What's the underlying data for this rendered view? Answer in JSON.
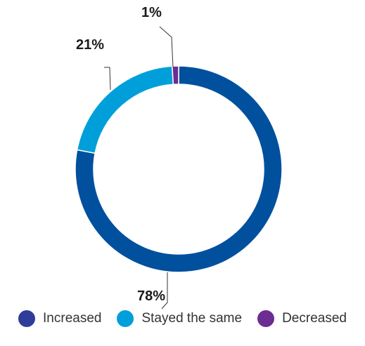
{
  "chart_data": {
    "type": "pie",
    "categories": [
      "Increased",
      "Stayed the same",
      "Decreased"
    ],
    "values": [
      78,
      21,
      1
    ],
    "value_labels": [
      "78%",
      "21%",
      "1%"
    ],
    "colors": [
      "#00509e",
      "#009fda",
      "#6d2c91"
    ],
    "legend_colors": [
      "#2e3d99",
      "#009fda",
      "#6d2c91"
    ],
    "style": "donut",
    "legend_position": "bottom"
  }
}
